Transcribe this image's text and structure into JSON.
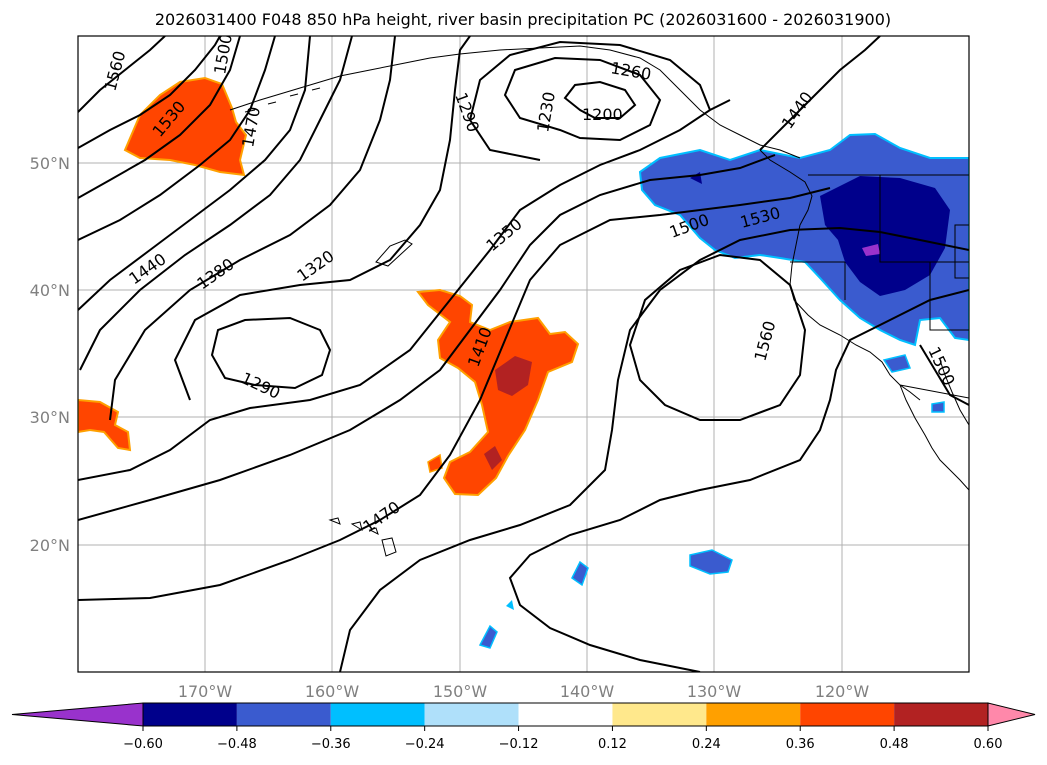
{
  "title": "2026031400 F048 850 hPa height, river basin precipitation PC (2026031600 - 2026031900)",
  "map": {
    "lon_labels": [
      "170°W",
      "160°W",
      "150°W",
      "140°W",
      "130°W",
      "120°W"
    ],
    "lat_labels": [
      "50°N",
      "40°N",
      "30°N",
      "20°N"
    ],
    "contour_labels": [
      "1560",
      "1530",
      "1500",
      "1470",
      "1440",
      "1380",
      "1320",
      "1290",
      "1290",
      "1230",
      "1200",
      "1260",
      "1350",
      "1410",
      "1470",
      "1500",
      "1530",
      "1560",
      "1440",
      "1500"
    ]
  },
  "colorbar": {
    "ticks": [
      "−0.60",
      "−0.48",
      "−0.36",
      "−0.24",
      "−0.12",
      "0.12",
      "0.24",
      "0.36",
      "0.48",
      "0.60"
    ],
    "colors": [
      "#9932cc",
      "#00008b",
      "#3a5bcf",
      "#00bfff",
      "#afe0fa",
      "#ffffff",
      "#ffe88c",
      "#ffa000",
      "#ff4500",
      "#b22222",
      "#ff88aa"
    ]
  }
}
